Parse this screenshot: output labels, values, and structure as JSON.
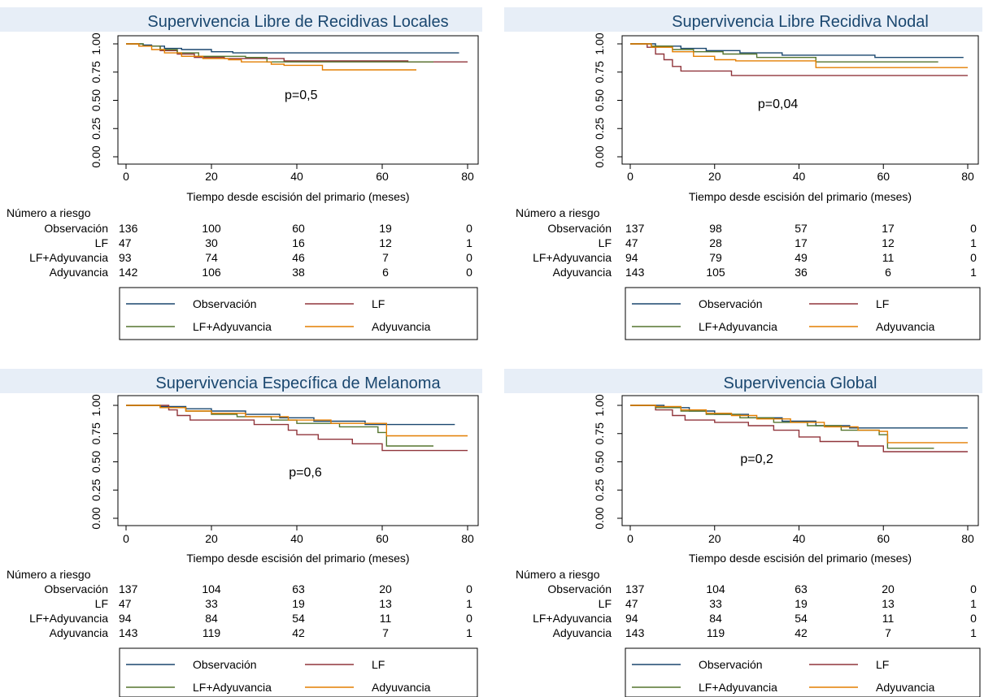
{
  "palette": {
    "Observación": "#1a476f",
    "LF": "#90353b",
    "LF+Adyuvancia": "#55752f",
    "Adyuvancia": "#e37e00",
    "title": "#1a476f",
    "background": "#e7eef7"
  },
  "risk_header": "Número a riesgo",
  "legend_order": [
    "Observación",
    "LF",
    "LF+Adyuvancia",
    "Adyuvancia"
  ],
  "chart_data": [
    {
      "type": "line",
      "step": true,
      "title": "Supervivencia Libre de Recidivas Locales",
      "xlabel": "Tiempo desde escisión del primario (meses)",
      "ylabel": "",
      "xlim": [
        0,
        80
      ],
      "ylim": [
        0,
        1
      ],
      "x_ticks": [
        "0",
        "20",
        "40",
        "60",
        "80"
      ],
      "y_ticks": [
        "0.00",
        "0.25",
        "0.50",
        "0.75",
        "1.00"
      ],
      "annotation": {
        "text": "p=0,5",
        "x": 41,
        "y": 0.51
      },
      "legend_position": "bottom",
      "series": [
        {
          "name": "Observación",
          "points": [
            [
              0,
              1
            ],
            [
              4,
              0.99
            ],
            [
              6,
              0.98
            ],
            [
              9,
              0.96
            ],
            [
              13,
              0.95
            ],
            [
              20,
              0.93
            ],
            [
              25,
              0.92
            ],
            [
              78,
              0.92
            ]
          ]
        },
        {
          "name": "LF",
          "points": [
            [
              0,
              1
            ],
            [
              3,
              0.98
            ],
            [
              8,
              0.94
            ],
            [
              12,
              0.91
            ],
            [
              16,
              0.88
            ],
            [
              23,
              0.87
            ],
            [
              37,
              0.85
            ],
            [
              66,
              0.84
            ],
            [
              80,
              0.84
            ]
          ]
        },
        {
          "name": "LF+Adyuvancia",
          "points": [
            [
              0,
              1
            ],
            [
              4,
              0.98
            ],
            [
              8,
              0.95
            ],
            [
              12,
              0.92
            ],
            [
              17,
              0.89
            ],
            [
              28,
              0.88
            ],
            [
              33,
              0.84
            ],
            [
              72,
              0.84
            ]
          ]
        },
        {
          "name": "Adyuvancia",
          "points": [
            [
              0,
              1
            ],
            [
              3,
              0.98
            ],
            [
              6,
              0.95
            ],
            [
              9,
              0.92
            ],
            [
              13,
              0.89
            ],
            [
              18,
              0.87
            ],
            [
              24,
              0.86
            ],
            [
              27,
              0.84
            ],
            [
              34,
              0.82
            ],
            [
              37,
              0.81
            ],
            [
              46,
              0.77
            ],
            [
              68,
              0.77
            ]
          ]
        }
      ],
      "risk_table": {
        "times": [
          "0",
          "20",
          "40",
          "60",
          "80"
        ],
        "rows": [
          {
            "label": "Observación",
            "counts": [
              "136",
              "100",
              "60",
              "19",
              "0"
            ]
          },
          {
            "label": "LF",
            "counts": [
              "47",
              "30",
              "16",
              "12",
              "1"
            ]
          },
          {
            "label": "LF+Adyuvancia",
            "counts": [
              "93",
              "74",
              "46",
              "7",
              "0"
            ]
          },
          {
            "label": "Adyuvancia",
            "counts": [
              "142",
              "106",
              "38",
              "6",
              "0"
            ]
          }
        ]
      }
    },
    {
      "type": "line",
      "step": true,
      "title": "Supervivencia Libre Recidiva Nodal",
      "xlabel": "Tiempo desde escisión del primario (meses)",
      "ylabel": "",
      "xlim": [
        0,
        80
      ],
      "ylim": [
        0,
        1
      ],
      "x_ticks": [
        "0",
        "20",
        "40",
        "60",
        "80"
      ],
      "y_ticks": [
        "0.00",
        "0.25",
        "0.50",
        "0.75",
        "1.00"
      ],
      "annotation": {
        "text": "p=0,04",
        "x": 35,
        "y": 0.43
      },
      "legend_position": "bottom",
      "series": [
        {
          "name": "Observación",
          "points": [
            [
              0,
              1
            ],
            [
              6,
              0.98
            ],
            [
              12,
              0.96
            ],
            [
              18,
              0.94
            ],
            [
              26,
              0.92
            ],
            [
              36,
              0.9
            ],
            [
              58,
              0.88
            ],
            [
              79,
              0.88
            ]
          ]
        },
        {
          "name": "LF",
          "points": [
            [
              0,
              1
            ],
            [
              4,
              0.97
            ],
            [
              6,
              0.91
            ],
            [
              8,
              0.86
            ],
            [
              10,
              0.8
            ],
            [
              12,
              0.76
            ],
            [
              24,
              0.72
            ],
            [
              80,
              0.72
            ]
          ]
        },
        {
          "name": "LF+Adyuvancia",
          "points": [
            [
              0,
              1
            ],
            [
              5,
              0.98
            ],
            [
              10,
              0.95
            ],
            [
              15,
              0.93
            ],
            [
              22,
              0.91
            ],
            [
              30,
              0.88
            ],
            [
              44,
              0.84
            ],
            [
              73,
              0.84
            ]
          ]
        },
        {
          "name": "Adyuvancia",
          "points": [
            [
              0,
              1
            ],
            [
              5,
              0.97
            ],
            [
              10,
              0.93
            ],
            [
              15,
              0.89
            ],
            [
              20,
              0.86
            ],
            [
              25,
              0.85
            ],
            [
              44,
              0.79
            ],
            [
              80,
              0.79
            ]
          ]
        }
      ],
      "risk_table": {
        "times": [
          "0",
          "20",
          "40",
          "60",
          "80"
        ],
        "rows": [
          {
            "label": "Observación",
            "counts": [
              "137",
              "98",
              "57",
              "17",
              "0"
            ]
          },
          {
            "label": "LF",
            "counts": [
              "47",
              "28",
              "17",
              "12",
              "1"
            ]
          },
          {
            "label": "LF+Adyuvancia",
            "counts": [
              "94",
              "79",
              "49",
              "11",
              "0"
            ]
          },
          {
            "label": "Adyuvancia",
            "counts": [
              "143",
              "105",
              "36",
              "6",
              "1"
            ]
          }
        ]
      }
    },
    {
      "type": "line",
      "step": true,
      "title": "Supervivencia Específica de Melanoma",
      "xlabel": "Tiempo desde escisión del primario (meses)",
      "ylabel": "",
      "xlim": [
        0,
        80
      ],
      "ylim": [
        0,
        1
      ],
      "x_ticks": [
        "0",
        "20",
        "40",
        "60",
        "80"
      ],
      "y_ticks": [
        "0.00",
        "0.25",
        "0.50",
        "0.75",
        "1.00"
      ],
      "annotation": {
        "text": "p=0,6",
        "x": 42,
        "y": 0.37
      },
      "legend_position": "bottom",
      "series": [
        {
          "name": "Observación",
          "points": [
            [
              0,
              1
            ],
            [
              8,
              0.99
            ],
            [
              14,
              0.97
            ],
            [
              20,
              0.95
            ],
            [
              28,
              0.92
            ],
            [
              36,
              0.89
            ],
            [
              44,
              0.86
            ],
            [
              56,
              0.83
            ],
            [
              77,
              0.83
            ]
          ]
        },
        {
          "name": "LF",
          "points": [
            [
              0,
              1
            ],
            [
              10,
              0.96
            ],
            [
              12,
              0.91
            ],
            [
              15,
              0.87
            ],
            [
              30,
              0.83
            ],
            [
              38,
              0.78
            ],
            [
              40,
              0.74
            ],
            [
              45,
              0.7
            ],
            [
              53,
              0.66
            ],
            [
              60,
              0.6
            ],
            [
              80,
              0.6
            ]
          ]
        },
        {
          "name": "LF+Adyuvancia",
          "points": [
            [
              0,
              1
            ],
            [
              8,
              0.98
            ],
            [
              14,
              0.95
            ],
            [
              20,
              0.92
            ],
            [
              26,
              0.9
            ],
            [
              34,
              0.87
            ],
            [
              40,
              0.84
            ],
            [
              50,
              0.81
            ],
            [
              59,
              0.76
            ],
            [
              61,
              0.64
            ],
            [
              72,
              0.64
            ]
          ]
        },
        {
          "name": "Adyuvancia",
          "points": [
            [
              0,
              1
            ],
            [
              8,
              0.98
            ],
            [
              14,
              0.95
            ],
            [
              20,
              0.93
            ],
            [
              28,
              0.9
            ],
            [
              38,
              0.87
            ],
            [
              48,
              0.84
            ],
            [
              59,
              0.84
            ],
            [
              61,
              0.73
            ],
            [
              80,
              0.73
            ]
          ]
        }
      ],
      "risk_table": {
        "times": [
          "0",
          "20",
          "40",
          "60",
          "80"
        ],
        "rows": [
          {
            "label": "Observación",
            "counts": [
              "137",
              "104",
              "63",
              "20",
              "0"
            ]
          },
          {
            "label": "LF",
            "counts": [
              "47",
              "33",
              "19",
              "13",
              "1"
            ]
          },
          {
            "label": "LF+Adyuvancia",
            "counts": [
              "94",
              "84",
              "54",
              "11",
              "0"
            ]
          },
          {
            "label": "Adyuvancia",
            "counts": [
              "143",
              "119",
              "42",
              "7",
              "1"
            ]
          }
        ]
      }
    },
    {
      "type": "line",
      "step": true,
      "title": "Supervivencia Global",
      "xlabel": "Tiempo desde escisión del primario (meses)",
      "ylabel": "",
      "xlim": [
        0,
        80
      ],
      "ylim": [
        0,
        1
      ],
      "x_ticks": [
        "0",
        "20",
        "40",
        "60",
        "80"
      ],
      "y_ticks": [
        "0.00",
        "0.25",
        "0.50",
        "0.75",
        "1.00"
      ],
      "annotation": {
        "text": "p=0,2",
        "x": 30,
        "y": 0.49
      },
      "legend_position": "bottom",
      "series": [
        {
          "name": "Observación",
          "points": [
            [
              0,
              1
            ],
            [
              8,
              0.98
            ],
            [
              14,
              0.95
            ],
            [
              20,
              0.92
            ],
            [
              28,
              0.89
            ],
            [
              36,
              0.86
            ],
            [
              44,
              0.82
            ],
            [
              52,
              0.8
            ],
            [
              80,
              0.8
            ]
          ]
        },
        {
          "name": "LF",
          "points": [
            [
              0,
              1
            ],
            [
              6,
              0.96
            ],
            [
              10,
              0.91
            ],
            [
              13,
              0.87
            ],
            [
              20,
              0.85
            ],
            [
              28,
              0.82
            ],
            [
              34,
              0.78
            ],
            [
              40,
              0.72
            ],
            [
              45,
              0.68
            ],
            [
              54,
              0.64
            ],
            [
              60,
              0.59
            ],
            [
              80,
              0.59
            ]
          ]
        },
        {
          "name": "LF+Adyuvancia",
          "points": [
            [
              0,
              1
            ],
            [
              6,
              0.98
            ],
            [
              12,
              0.95
            ],
            [
              18,
              0.92
            ],
            [
              26,
              0.89
            ],
            [
              34,
              0.85
            ],
            [
              42,
              0.82
            ],
            [
              50,
              0.78
            ],
            [
              59,
              0.74
            ],
            [
              61,
              0.62
            ],
            [
              72,
              0.62
            ]
          ]
        },
        {
          "name": "Adyuvancia",
          "points": [
            [
              0,
              1
            ],
            [
              6,
              0.99
            ],
            [
              12,
              0.96
            ],
            [
              18,
              0.93
            ],
            [
              24,
              0.91
            ],
            [
              30,
              0.88
            ],
            [
              38,
              0.85
            ],
            [
              46,
              0.81
            ],
            [
              54,
              0.78
            ],
            [
              59,
              0.77
            ],
            [
              61,
              0.67
            ],
            [
              80,
              0.67
            ]
          ]
        }
      ],
      "risk_table": {
        "times": [
          "0",
          "20",
          "40",
          "60",
          "80"
        ],
        "rows": [
          {
            "label": "Observación",
            "counts": [
              "137",
              "104",
              "63",
              "20",
              "0"
            ]
          },
          {
            "label": "LF",
            "counts": [
              "47",
              "33",
              "19",
              "13",
              "1"
            ]
          },
          {
            "label": "LF+Adyuvancia",
            "counts": [
              "94",
              "84",
              "54",
              "11",
              "0"
            ]
          },
          {
            "label": "Adyuvancia",
            "counts": [
              "143",
              "119",
              "42",
              "7",
              "1"
            ]
          }
        ]
      }
    }
  ]
}
